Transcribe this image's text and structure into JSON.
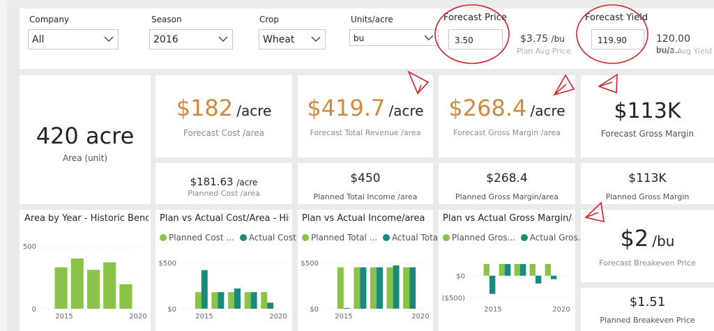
{
  "colors": {
    "accent_orange": "#d08a3e",
    "green": "#8bc34a",
    "teal": "#1a8a7a",
    "annotation_red": "#d0212a"
  },
  "slicers": {
    "company": {
      "label": "Company",
      "value": "All"
    },
    "season": {
      "label": "Season",
      "value": "2016"
    },
    "crop": {
      "label": "Crop",
      "value": "Wheat"
    },
    "units": {
      "label": "Units/acre",
      "value": "bu"
    }
  },
  "forecast_price": {
    "label": "Forecast Price",
    "value": "3.50",
    "plan_value": "$3.75",
    "plan_unit": "/bu",
    "plan_caption": "Plan Avg Price"
  },
  "forecast_yield": {
    "label": "Forecast Yield",
    "value": "119.90",
    "plan_value": "120.00",
    "plan_unit": "bu/a...",
    "plan_caption": "Plan Avg Yield"
  },
  "area": {
    "value": "420 acre",
    "caption": "Area (unit)"
  },
  "forecast_cost": {
    "value": "$182",
    "unit": "/acre",
    "caption": "Forecast Cost /area"
  },
  "forecast_revenue": {
    "value": "$419.7",
    "unit": "/acre",
    "caption": "Forecast Total Revenue /area"
  },
  "forecast_margin": {
    "value": "$268.4",
    "unit": "/acre",
    "caption": "Forecast Gross Margin /area"
  },
  "forecast_gross_margin": {
    "value": "$113K",
    "caption": "Forecast Gross Margin"
  },
  "planned_cost": {
    "value": "$181.63",
    "unit": "/acre",
    "caption": "Planned Cost /area"
  },
  "planned_income": {
    "value": "$450",
    "caption": "Planned Total Income /area"
  },
  "planned_margin_area": {
    "value": "$268.4",
    "caption": "Planned Gross Margin/area"
  },
  "planned_gross_margin": {
    "value": "$113K",
    "caption": "Planned Gross Margin"
  },
  "forecast_breakeven": {
    "value": "$2",
    "unit": "/bu",
    "caption": "Forecast Breakeven Price"
  },
  "planned_breakeven": {
    "value": "$1.51",
    "caption": "Planned Breakeven Price"
  },
  "chart_data": [
    {
      "type": "bar",
      "title": "Area by Year - Historic Benc...",
      "x": [
        2015,
        2016,
        2017,
        2018,
        2019
      ],
      "series": [
        {
          "values": [
            330,
            400,
            310,
            370,
            195
          ]
        }
      ],
      "xticks": [
        "2015",
        "2020"
      ],
      "yticks": [
        "500",
        "0"
      ],
      "ylim": [
        0,
        500
      ],
      "grid": true
    },
    {
      "type": "bar",
      "title": "Plan vs Actual Cost/Area - His...",
      "x": [
        2015,
        2016,
        2017,
        2018,
        2019
      ],
      "series": [
        {
          "name": "Planned Cost ...",
          "values": [
            180,
            180,
            180,
            180,
            180
          ]
        },
        {
          "name": "Actual Cost ...",
          "values": [
            420,
            180,
            220,
            180,
            65
          ]
        }
      ],
      "xticks": [
        "2015",
        "2020"
      ],
      "yticks": [
        "$500",
        "$0"
      ],
      "ylim": [
        0,
        500
      ],
      "legend": "top-left",
      "grid": true
    },
    {
      "type": "bar",
      "title": "Plan vs Actual Income/area",
      "x": [
        2015,
        2016,
        2017,
        2018,
        2019
      ],
      "series": [
        {
          "name": "Planned Total ...",
          "values": [
            450,
            450,
            450,
            450,
            450
          ]
        },
        {
          "name": "Actual Total...",
          "values": [
            8,
            450,
            450,
            470,
            450
          ]
        }
      ],
      "xticks": [
        "2015",
        "2020"
      ],
      "yticks": [
        "$500",
        "$0"
      ],
      "ylim": [
        0,
        500
      ],
      "legend": "top-left",
      "grid": true
    },
    {
      "type": "bar",
      "title": "Plan vs Actual Gross Margin/a...",
      "x": [
        2015,
        2016,
        2017,
        2018,
        2019
      ],
      "series": [
        {
          "name": "Planned Gros...",
          "values": [
            270,
            270,
            270,
            270,
            270
          ]
        },
        {
          "name": "Actual Gros...",
          "values": [
            -420,
            270,
            270,
            -180,
            -80
          ]
        }
      ],
      "xticks": [
        "2015",
        "2020"
      ],
      "yticks": [
        "$0",
        "($500)"
      ],
      "ylim": [
        -600,
        300
      ],
      "legend": "top-left",
      "grid": true
    }
  ]
}
